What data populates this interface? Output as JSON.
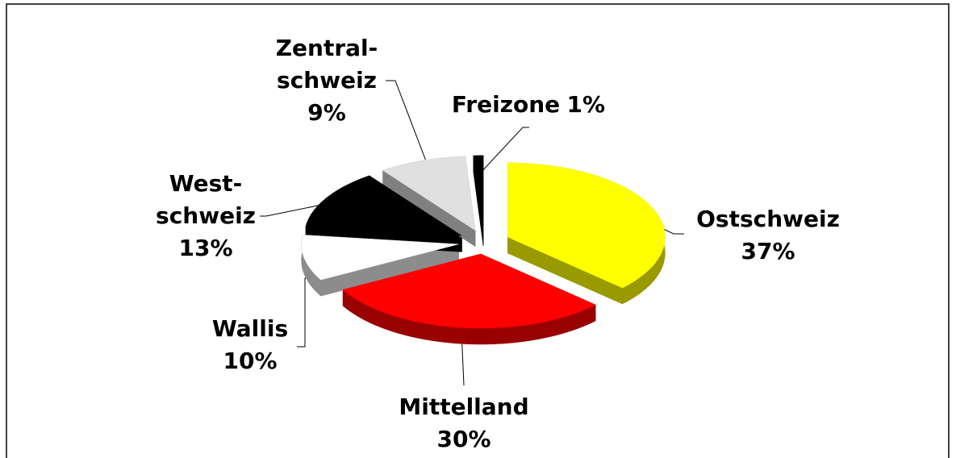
{
  "chart_data": {
    "type": "pie",
    "categories": [
      "Ostschweiz",
      "Mittelland",
      "Wallis",
      "West-\nschweiz",
      "Zentral-\nschweiz",
      "Freizone"
    ],
    "values": [
      37,
      30,
      10,
      13,
      9,
      1
    ],
    "value_labels": [
      "37%",
      "30%",
      "10%",
      "13%",
      "9%",
      "1%"
    ],
    "colors": [
      "#ffff00",
      "#ff0000",
      "#ffffff",
      "#000000",
      "#e0e0e0",
      "#000000"
    ],
    "side_colors": [
      "#999900",
      "#990000",
      "#8c8c8c",
      "#000000",
      "#808080",
      "#000000"
    ]
  }
}
